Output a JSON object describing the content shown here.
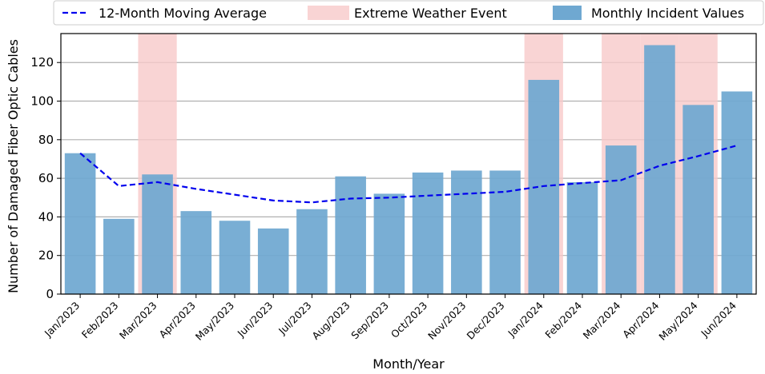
{
  "chart_data": {
    "type": "bar",
    "categories": [
      "Jan/2023",
      "Feb/2023",
      "Mar/2023",
      "Apr/2023",
      "May/2023",
      "Jun/2023",
      "Jul/2023",
      "Aug/2023",
      "Sep/2023",
      "Oct/2023",
      "Nov/2023",
      "Dec/2023",
      "Jan/2024",
      "Feb/2024",
      "Mar/2024",
      "Apr/2024",
      "May/2024",
      "Jun/2024"
    ],
    "series": [
      {
        "name": "Monthly Incident Values",
        "type": "bar",
        "values": [
          73,
          39,
          62,
          43,
          38,
          34,
          44,
          61,
          52,
          63,
          64,
          64,
          111,
          58,
          77,
          129,
          98,
          105
        ],
        "color": "#6fa8d1"
      },
      {
        "name": "12-Month Moving Average",
        "type": "line",
        "values": [
          73,
          56,
          58,
          54.5,
          51.5,
          48.5,
          47.5,
          49.5,
          50,
          51,
          52,
          53,
          56,
          57.5,
          59,
          66.5,
          71.5,
          77
        ],
        "color": "#0000ee",
        "style": "dashed"
      }
    ],
    "highlight": {
      "name": "Extreme Weather Event",
      "color": "#f8c9c9",
      "categories": [
        "Mar/2023",
        "Jan/2024",
        "Mar/2024",
        "Apr/2024",
        "May/2024"
      ]
    },
    "xlabel": "Month/Year",
    "ylabel": "Number of Damaged Fiber Optic Cables",
    "ylim": [
      0,
      135
    ],
    "yticks": [
      0,
      20,
      40,
      60,
      80,
      100,
      120
    ],
    "grid": "y",
    "legend": {
      "placement": "top",
      "entries": [
        "12-Month Moving Average",
        "Extreme Weather Event",
        "Monthly Incident Values"
      ]
    }
  }
}
